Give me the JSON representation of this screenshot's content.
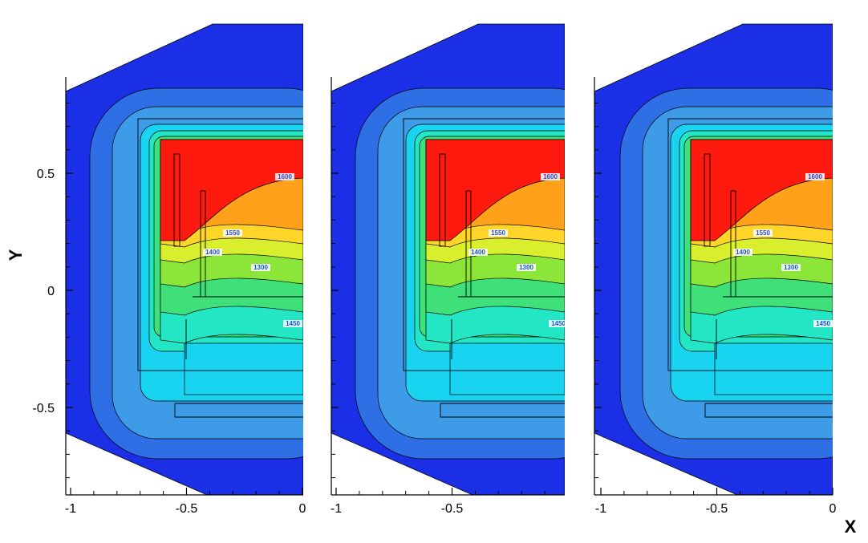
{
  "chart_data": {
    "type": "contour",
    "xlabel": "X",
    "ylabel": "Y",
    "x_ticks": [
      "-1",
      "-0.5",
      "0"
    ],
    "y_ticks": [
      "0.5",
      "0",
      "-0.5"
    ],
    "panels": [
      {
        "xlim": [
          -1.03,
          0
        ],
        "ylim": [
          -0.9,
          0.9
        ],
        "x_tick_labels": [
          "-1",
          "-0.5",
          "0"
        ],
        "y_tick_labels": [
          "0.5",
          "0",
          "-0.5"
        ],
        "contour_labels": [
          "1600",
          "1550",
          "1400",
          "1300",
          "1450"
        ]
      },
      {
        "xlim": [
          -1.03,
          0
        ],
        "ylim": [
          -0.9,
          0.9
        ],
        "x_tick_labels": [
          "-1",
          "-0.5"
        ],
        "y_tick_labels": [],
        "contour_labels": [
          "1600",
          "1550",
          "1400",
          "1300",
          "1450"
        ]
      },
      {
        "xlim": [
          -1.03,
          0
        ],
        "ylim": [
          -0.9,
          0.9
        ],
        "x_tick_labels": [
          "-1",
          "-0.5",
          "0"
        ],
        "y_tick_labels": [],
        "contour_labels": [
          "1600",
          "1550",
          "1400",
          "1300",
          "1450"
        ]
      }
    ],
    "colormap": [
      "#1a2fe6",
      "#2f6fe6",
      "#3d9be8",
      "#19d4f0",
      "#22e6c4",
      "#3fe07a",
      "#8ce63a",
      "#d9ee2c",
      "#ffd52a",
      "#ffa21a",
      "#ff6a16",
      "#ff1a10"
    ]
  }
}
